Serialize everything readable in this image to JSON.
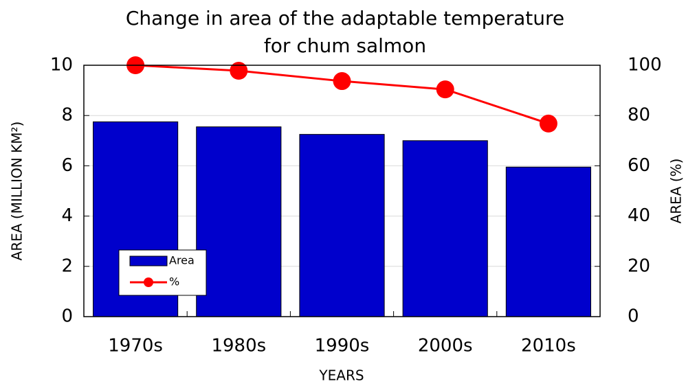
{
  "chart_data": {
    "type": "bar",
    "title": [
      "Change in area of the adaptable temperature",
      "for chum salmon"
    ],
    "x_label": "YEARS",
    "y_label": "AREA (MILLION KM²)",
    "y2_label": "AREA (%)",
    "categories": [
      "1970s",
      "1980s",
      "1990s",
      "2000s",
      "2010s"
    ],
    "series": [
      {
        "name": "Area",
        "type": "bar",
        "color": "#0000cc",
        "values": [
          7.75,
          7.55,
          7.25,
          7.0,
          5.95
        ]
      },
      {
        "name": "%",
        "type": "line",
        "axis": "y2",
        "color": "#ff0000",
        "values": [
          100,
          97.8,
          93.7,
          90.4,
          76.8
        ]
      }
    ],
    "ylim": [
      0,
      10
    ],
    "yticks": [
      0,
      2,
      4,
      6,
      8,
      10
    ],
    "y2lim": [
      0,
      100
    ],
    "y2ticks": [
      0,
      20,
      40,
      60,
      80,
      100
    ],
    "grid": true,
    "legend": "lower left"
  }
}
